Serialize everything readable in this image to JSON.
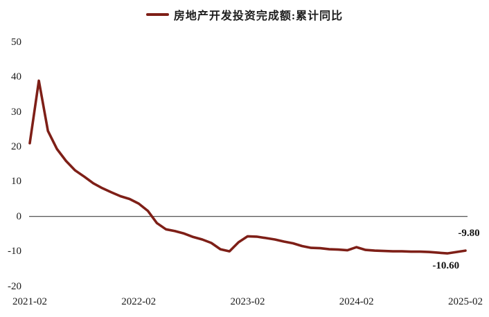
{
  "legend": {
    "label": "房地产开发投资完成额:累计同比"
  },
  "colors": {
    "line": "#7E1F17",
    "text": "#1A1A1A",
    "axis_line": "#3F3F3F",
    "background": "#FFFFFF"
  },
  "chart_data": {
    "type": "line",
    "title": "房地产开发投资完成额:累计同比",
    "legend_position": "top-center",
    "grid": false,
    "zero_line": true,
    "ylim": [
      -20,
      50
    ],
    "y_ticks": [
      50,
      40,
      30,
      20,
      10,
      0,
      -10,
      -20
    ],
    "x_tick_labels": [
      "2021-02",
      "2022-02",
      "2023-02",
      "2024-02",
      "2025-02"
    ],
    "x": [
      "2021-02",
      "2021-03",
      "2021-04",
      "2021-05",
      "2021-06",
      "2021-07",
      "2021-08",
      "2021-09",
      "2021-10",
      "2021-11",
      "2021-12",
      "2022-01",
      "2022-02",
      "2022-03",
      "2022-04",
      "2022-05",
      "2022-06",
      "2022-07",
      "2022-08",
      "2022-09",
      "2022-10",
      "2022-11",
      "2022-12",
      "2023-01",
      "2023-02",
      "2023-03",
      "2023-04",
      "2023-05",
      "2023-06",
      "2023-07",
      "2023-08",
      "2023-09",
      "2023-10",
      "2023-11",
      "2023-12",
      "2024-01",
      "2024-02",
      "2024-03",
      "2024-04",
      "2024-05",
      "2024-06",
      "2024-07",
      "2024-08",
      "2024-09",
      "2024-10",
      "2024-11",
      "2024-12",
      "2025-01",
      "2025-02"
    ],
    "values": [
      21.0,
      38.9,
      24.5,
      19.3,
      15.9,
      13.2,
      11.4,
      9.5,
      8.1,
      6.9,
      5.8,
      5.0,
      3.7,
      1.6,
      -1.9,
      -3.7,
      -4.2,
      -4.9,
      -5.9,
      -6.6,
      -7.6,
      -9.4,
      -10.0,
      -7.4,
      -5.7,
      -5.8,
      -6.2,
      -6.6,
      -7.2,
      -7.7,
      -8.5,
      -9.0,
      -9.1,
      -9.4,
      -9.5,
      -9.7,
      -8.8,
      -9.6,
      -9.8,
      -9.9,
      -10.0,
      -10.0,
      -10.1,
      -10.1,
      -10.2,
      -10.4,
      -10.6,
      -10.2,
      -9.8
    ],
    "annotations": [
      {
        "text": "-9.80",
        "x": "2025-02",
        "value": -9.8,
        "position": "above"
      },
      {
        "text": "-10.60",
        "x": "2024-12",
        "value": -10.6,
        "position": "below"
      }
    ]
  }
}
